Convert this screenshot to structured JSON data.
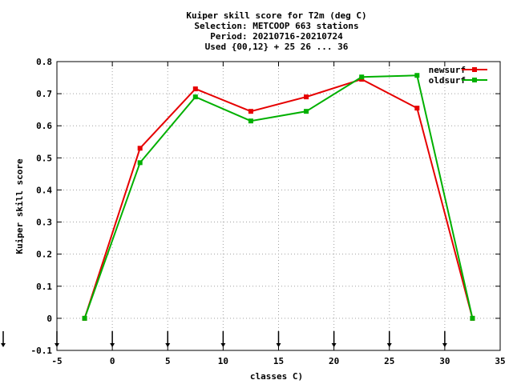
{
  "chart_data": {
    "type": "line",
    "title_lines": [
      "Kuiper skill score  for T2m (deg C)",
      "Selection: METCOOP    663 stations",
      "Period: 20210716-20210724",
      "Used {00,12} + 25 26 ... 36"
    ],
    "xlabel": "classes C)",
    "ylabel": "Kuiper skill score",
    "xlim": [
      -5,
      35
    ],
    "ylim": [
      -0.1,
      0.8
    ],
    "x_ticks": [
      -5,
      0,
      5,
      10,
      15,
      20,
      25,
      30,
      35
    ],
    "x_tick_labels": [
      "-5",
      "0",
      "5",
      "10",
      "15",
      "20",
      "25",
      "30",
      "35"
    ],
    "y_ticks": [
      -0.1,
      0,
      0.1,
      0.2,
      0.3,
      0.4,
      0.5,
      0.6,
      0.7,
      0.8
    ],
    "y_tick_labels": [
      "-0.1",
      "0",
      "0.1",
      "0.2",
      "0.3",
      "0.4",
      "0.5",
      "0.6",
      "0.7",
      "0.8"
    ],
    "grid": true,
    "legend_position": "top-right",
    "arrow_markers_x": [
      -5,
      0,
      5,
      10,
      15,
      20,
      25,
      30
    ],
    "series": [
      {
        "name": "newsurf",
        "color": "#e60000",
        "x": [
          -2.5,
          2.5,
          7.5,
          12.5,
          17.5,
          22.5,
          27.5,
          32.5
        ],
        "y": [
          0.0,
          0.53,
          0.715,
          0.645,
          0.69,
          0.745,
          0.655,
          0.0
        ]
      },
      {
        "name": "oldsurf",
        "color": "#00b000",
        "x": [
          -2.5,
          2.5,
          7.5,
          12.5,
          17.5,
          22.5,
          27.5,
          32.5
        ],
        "y": [
          0.0,
          0.485,
          0.69,
          0.615,
          0.645,
          0.752,
          0.757,
          0.0
        ]
      }
    ]
  }
}
